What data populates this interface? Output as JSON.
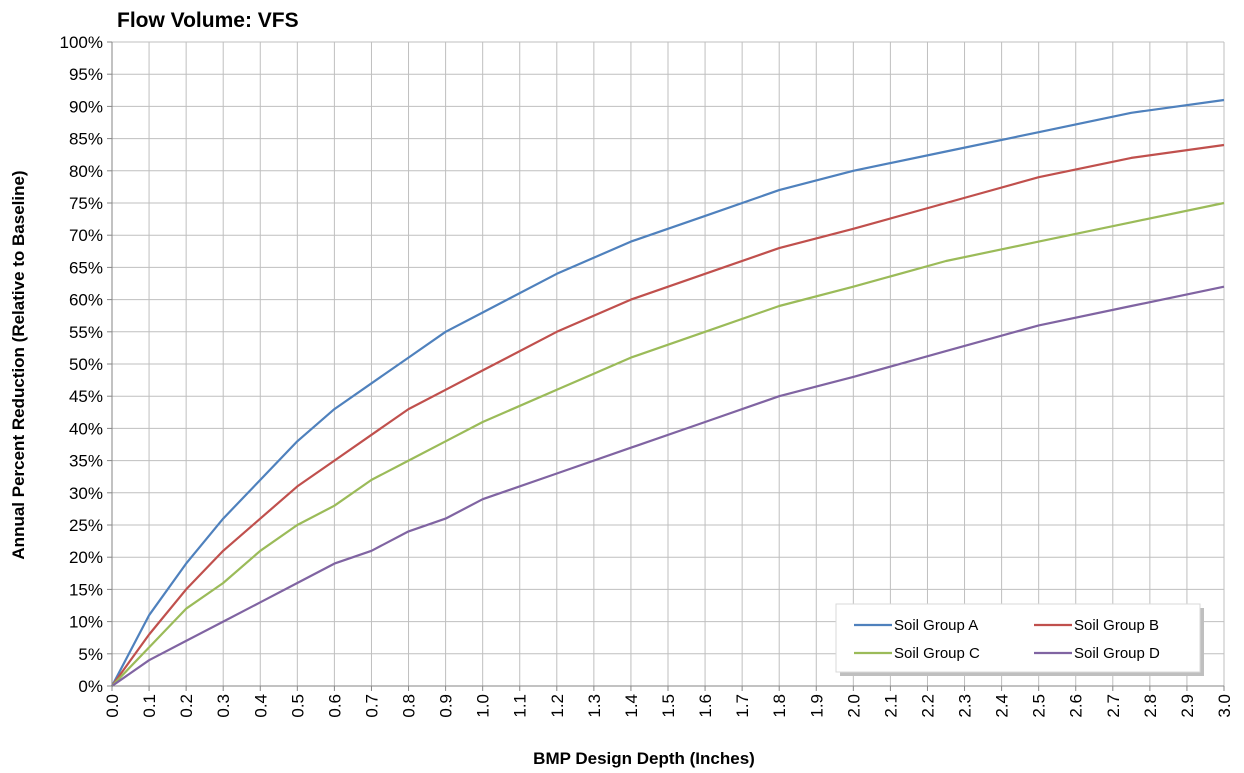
{
  "chart_data": {
    "type": "line",
    "title": "Flow Volume: VFS",
    "xlabel": "BMP Design Depth (Inches)",
    "ylabel": "Annual Percent Reduction (Relative to Baseline)",
    "xlim": [
      0,
      3.0
    ],
    "ylim": [
      0,
      100
    ],
    "x_ticks": [
      "0.0",
      "0.1",
      "0.2",
      "0.3",
      "0.4",
      "0.5",
      "0.6",
      "0.7",
      "0.8",
      "0.9",
      "1.0",
      "1.1",
      "1.2",
      "1.3",
      "1.4",
      "1.5",
      "1.6",
      "1.7",
      "1.8",
      "1.9",
      "2.0",
      "2.1",
      "2.2",
      "2.3",
      "2.4",
      "2.5",
      "2.6",
      "2.7",
      "2.8",
      "2.9",
      "3.0"
    ],
    "y_ticks": [
      "0%",
      "5%",
      "10%",
      "15%",
      "20%",
      "25%",
      "30%",
      "35%",
      "40%",
      "45%",
      "50%",
      "55%",
      "60%",
      "65%",
      "70%",
      "75%",
      "80%",
      "85%",
      "90%",
      "95%",
      "100%"
    ],
    "grid": true,
    "legend_position": "bottom-right",
    "series": [
      {
        "name": "Soil Group A",
        "color": "#4F81BD",
        "x": [
          0,
          0.1,
          0.2,
          0.3,
          0.4,
          0.5,
          0.6,
          0.7,
          0.8,
          0.9,
          1.0,
          1.2,
          1.4,
          1.6,
          1.8,
          2.0,
          2.25,
          2.5,
          2.75,
          3.0
        ],
        "y": [
          0,
          11,
          19,
          26,
          32,
          38,
          43,
          47,
          51,
          55,
          58,
          64,
          69,
          73,
          77,
          80,
          83,
          86,
          89,
          91
        ]
      },
      {
        "name": "Soil Group B",
        "color": "#C0504D",
        "x": [
          0,
          0.1,
          0.2,
          0.3,
          0.4,
          0.5,
          0.6,
          0.7,
          0.8,
          0.9,
          1.0,
          1.2,
          1.4,
          1.6,
          1.8,
          2.0,
          2.25,
          2.5,
          2.75,
          3.0
        ],
        "y": [
          0,
          8,
          15,
          21,
          26,
          31,
          35,
          39,
          43,
          46,
          49,
          55,
          60,
          64,
          68,
          71,
          75,
          79,
          82,
          84
        ]
      },
      {
        "name": "Soil Group C",
        "color": "#9BBB59",
        "x": [
          0,
          0.1,
          0.2,
          0.3,
          0.4,
          0.5,
          0.6,
          0.7,
          0.8,
          0.9,
          1.0,
          1.2,
          1.4,
          1.6,
          1.8,
          2.0,
          2.25,
          2.5,
          2.75,
          3.0
        ],
        "y": [
          0,
          6,
          12,
          16,
          21,
          25,
          28,
          32,
          35,
          38,
          41,
          46,
          51,
          55,
          59,
          62,
          66,
          69,
          72,
          75
        ]
      },
      {
        "name": "Soil Group D",
        "color": "#8064A2",
        "x": [
          0,
          0.1,
          0.2,
          0.3,
          0.4,
          0.5,
          0.6,
          0.7,
          0.8,
          0.9,
          1.0,
          1.2,
          1.4,
          1.6,
          1.8,
          2.0,
          2.25,
          2.5,
          2.75,
          3.0
        ],
        "y": [
          0,
          4,
          7,
          10,
          13,
          16,
          19,
          21,
          24,
          26,
          29,
          33,
          37,
          41,
          45,
          48,
          52,
          56,
          59,
          62
        ]
      }
    ]
  },
  "colors": {
    "gridline": "#BFBFBF",
    "axis": "#868686"
  }
}
